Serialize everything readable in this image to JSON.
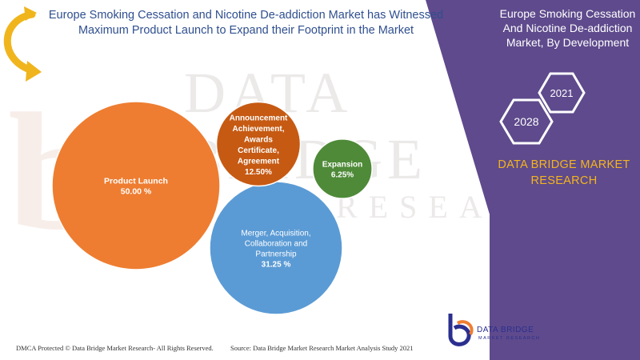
{
  "header": {
    "title": "Europe Smoking Cessation and Nicotine De-addiction Market has Witnessed Maximum Product Launch to Expand their Footprint in the Market"
  },
  "side_panel": {
    "title": "Europe Smoking Cessation And Nicotine De-addiction Market, By Development",
    "years": [
      "2028",
      "2021"
    ],
    "brand": "DATA BRIDGE MARKET RESEARCH",
    "logo_text": "DATA BRIDGE",
    "logo_sub": "MARKET RESEARCH"
  },
  "footer": {
    "left": "DMCA Protected © Data Bridge Market Research- All Rights Reserved.",
    "right": "Source: Data Bridge Market Research Market Analysis Study 2021"
  },
  "colors": {
    "purple_panel": "#5e4a8c",
    "orange": "#ee7d31",
    "dark_orange": "#c65a13",
    "green": "#4e8a38",
    "blue": "#5b9bd5",
    "gold": "#f5b41d",
    "title_blue": "#2f4f8f"
  },
  "chart_data": {
    "type": "bubble",
    "series": [
      {
        "label": [
          "Product Launch",
          "50.00 %"
        ],
        "value": 50.0,
        "color": "#ee7d31"
      },
      {
        "label": [
          "Merger, Acquisition,",
          "Collaboration and",
          "Partnership",
          "31.25 %"
        ],
        "value": 31.25,
        "color": "#5b9bd5"
      },
      {
        "label": [
          "Announcement",
          "Achievement,",
          "Awards",
          "Certificate,",
          "Agreement",
          "12.50%"
        ],
        "value": 12.5,
        "color": "#c65a13"
      },
      {
        "label": [
          "Expansion",
          "6.25%"
        ],
        "value": 6.25,
        "color": "#4e8a38"
      }
    ]
  }
}
